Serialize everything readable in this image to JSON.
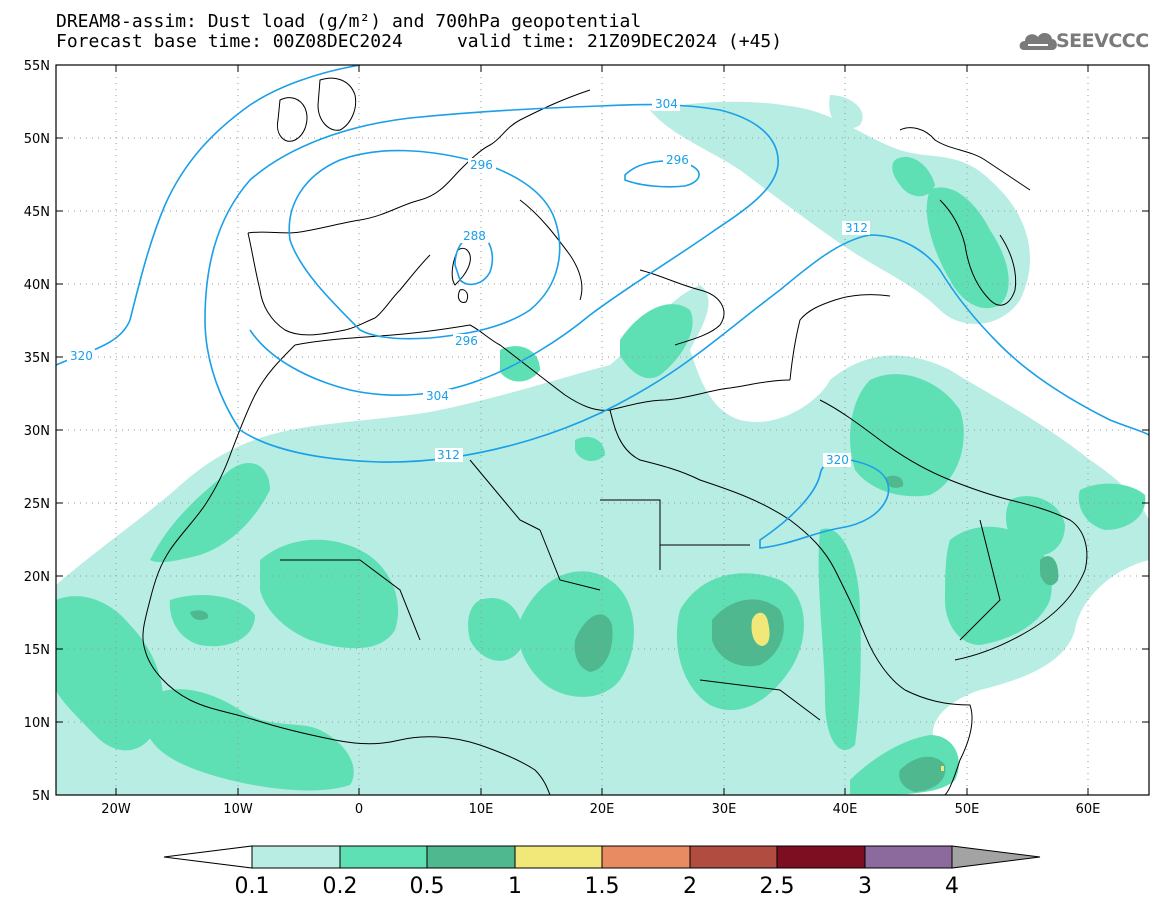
{
  "title": {
    "line1": "DREAM8-assim: Dust load (g/m²) and 700hPa geopotential",
    "line2": "Forecast base time: 00Z08DEC2024     valid time: 21Z09DEC2024 (+45)"
  },
  "logo": {
    "text": "SEEVCCC",
    "icon": "cloud-icon"
  },
  "map": {
    "lat_labels": [
      "55N",
      "50N",
      "45N",
      "40N",
      "35N",
      "30N",
      "25N",
      "20N",
      "15N",
      "10N",
      "5N"
    ],
    "lon_labels": [
      "20W",
      "10W",
      "0",
      "10E",
      "20E",
      "30E",
      "40E",
      "50E",
      "60E"
    ],
    "contour_labels": [
      "304",
      "296",
      "296",
      "288",
      "312",
      "296",
      "304",
      "312",
      "320",
      "320"
    ],
    "colors": {
      "contour": "#1a9fe8",
      "coast": "#000000"
    }
  },
  "colorbar": {
    "labels": [
      "0.1",
      "0.2",
      "0.5",
      "1",
      "1.5",
      "2",
      "2.5",
      "3",
      "4"
    ],
    "colors": [
      "#ffffff",
      "#b7ede3",
      "#5fe0b4",
      "#4fb88e",
      "#f2e87a",
      "#e88b62",
      "#b04c40",
      "#7d0e22",
      "#8d6a9e",
      "#a3a3a3"
    ]
  }
}
